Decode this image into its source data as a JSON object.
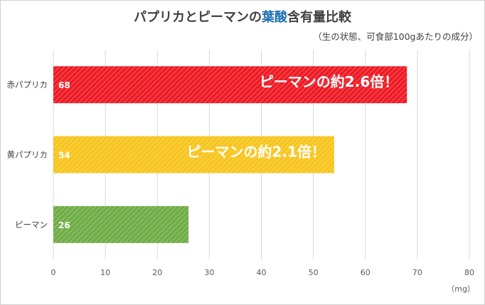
{
  "title": {
    "prefix": "パプリカとピーマンの",
    "highlight": "葉酸",
    "suffix": "含有量比較"
  },
  "subtitle": "（生の状態、可食部100gあたりの成分）",
  "unit": "（mg）",
  "colors": {
    "red": "#ee1c25",
    "yellow": "#f7c51f",
    "green": "#70ad47",
    "highlight": "#1f6fb4"
  },
  "chart_data": {
    "type": "bar",
    "orientation": "horizontal",
    "categories": [
      "赤パプリカ",
      "黄パプリカ",
      "ピーマン"
    ],
    "values": [
      68,
      54,
      26
    ],
    "xlim": [
      0,
      80
    ],
    "xticks": [
      0,
      10,
      20,
      30,
      40,
      50,
      60,
      70,
      80
    ],
    "annotations": [
      "ピーマンの約2.6倍！",
      "ピーマンの約2.1倍！",
      ""
    ],
    "xlabel": "（mg）",
    "grid": true,
    "legend": "none"
  }
}
